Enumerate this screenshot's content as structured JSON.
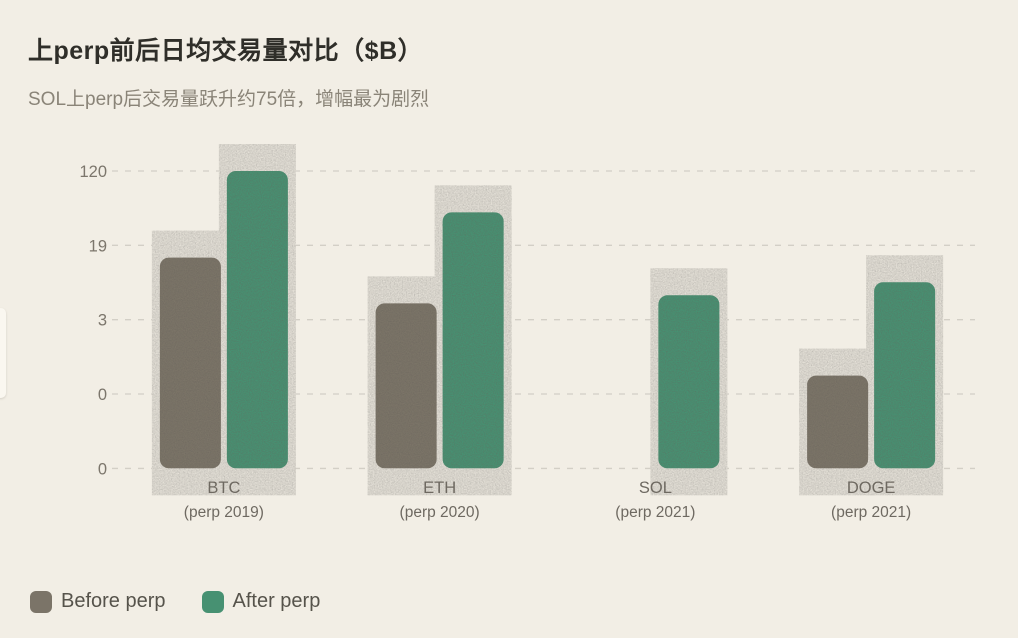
{
  "header": {
    "title": "上perp前后日均交易量对比（$B）",
    "subtitle": "SOL上perp后交易量跃升约75倍，增幅最为剧烈"
  },
  "chart_data": {
    "type": "bar",
    "title": "上perp前后日均交易量对比（$B）",
    "subtitle": "SOL上perp后交易量跃升约75倍，增幅最为剧烈",
    "categories": [
      "BTC",
      "ETH",
      "SOL",
      "DOGE"
    ],
    "category_sublabels": [
      "(perp 2019)",
      "(perp 2020)",
      "(perp 2021)",
      "(perp 2021)"
    ],
    "series": [
      {
        "name": "Before perp",
        "color": "#7b7468",
        "values": [
          14,
          4.5,
          0.075,
          0.75
        ]
      },
      {
        "name": "After perp",
        "color": "#479172",
        "values": [
          120,
          43,
          5.5,
          7.6
        ]
      }
    ],
    "yscale": "log",
    "ylim": [
      0.075,
      120
    ],
    "yticks": [
      {
        "label": "120",
        "value": 120
      },
      {
        "label": "19",
        "value": 19
      },
      {
        "label": "3",
        "value": 3
      },
      {
        "label": "0",
        "value": 0.475
      },
      {
        "label": "0",
        "value": 0.075
      }
    ],
    "grid": "dashed horizontal",
    "legend_position": "bottom-left",
    "units": "$B daily volume"
  },
  "legend": {
    "items": [
      {
        "label": "Before perp",
        "color": "#7b7468"
      },
      {
        "label": "After perp",
        "color": "#479172"
      }
    ]
  },
  "colors": {
    "background": "#f2eee5",
    "grid": "#d3cfc6",
    "halo": "#e5e1d8",
    "title_text": "#2f2e29",
    "subtitle_text": "#8a8478",
    "tick_text": "#7c766c",
    "category_text": "#6e6961",
    "legend_text": "#56534b"
  }
}
